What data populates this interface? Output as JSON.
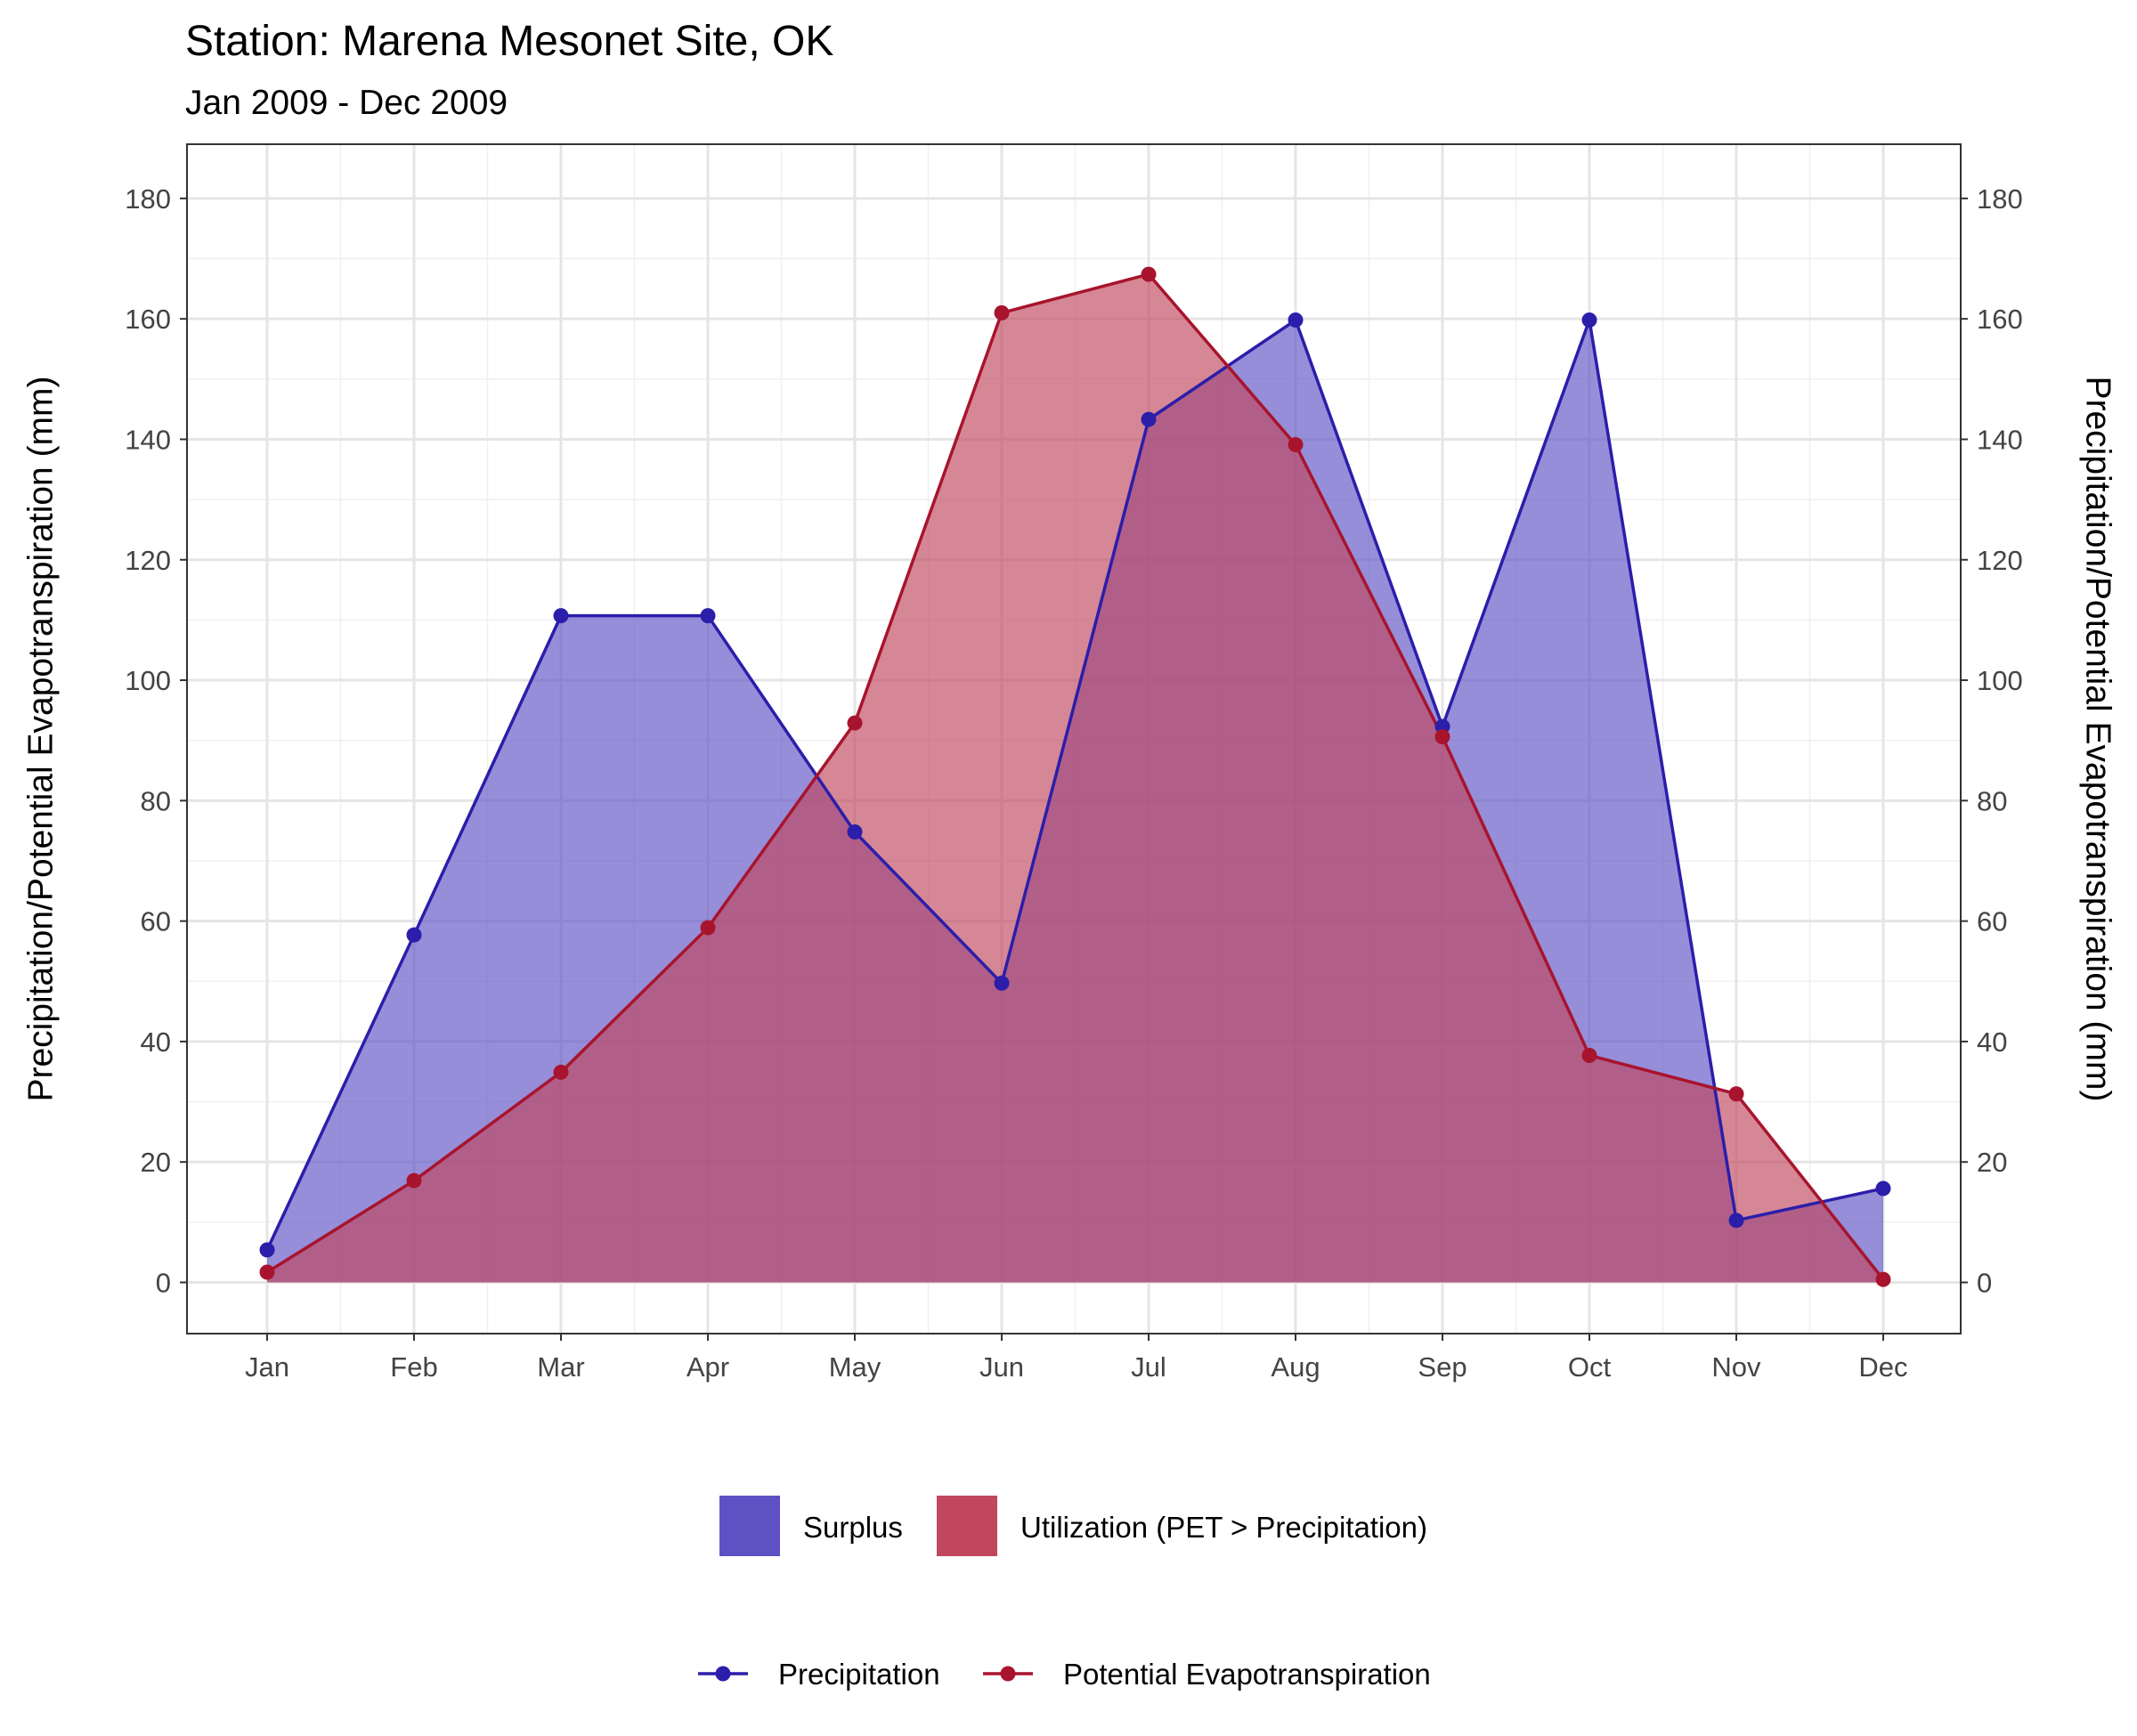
{
  "chart_data": {
    "type": "area",
    "title": "Station: Marena Mesonet Site, OK",
    "subtitle": "Jan 2009 - Dec 2009",
    "ylabel": "Precipitation/Potential Evapotranspiration (mm)",
    "ylabel_right": "Precipitation/Potential Evapotranspiration (mm)",
    "xlabel": "",
    "categories": [
      "Jan",
      "Feb",
      "Mar",
      "Apr",
      "May",
      "Jun",
      "Jul",
      "Aug",
      "Sep",
      "Oct",
      "Nov",
      "Dec"
    ],
    "yticks": [
      0,
      20,
      40,
      60,
      80,
      100,
      120,
      140,
      160,
      180
    ],
    "ylim": [
      -8.5,
      189
    ],
    "grid": true,
    "series": [
      {
        "name": "Precipitation",
        "color": "#2b1eaa",
        "values": [
          5.4,
          57.7,
          110.7,
          110.7,
          74.8,
          49.7,
          143.3,
          159.8,
          92.3,
          159.8,
          10.3,
          15.6
        ]
      },
      {
        "name": "Potential Evapotranspiration",
        "color": "#a8142d",
        "values": [
          1.7,
          16.9,
          34.9,
          58.9,
          92.9,
          161.0,
          167.4,
          139.1,
          90.6,
          37.7,
          31.3,
          0.5
        ]
      }
    ],
    "fill_legend": [
      {
        "name": "Surplus",
        "color": "#5e51c4"
      },
      {
        "name": "Utilization (PET > Precipitation)",
        "color": "#c0475e"
      }
    ],
    "legend_placement": "bottom"
  }
}
